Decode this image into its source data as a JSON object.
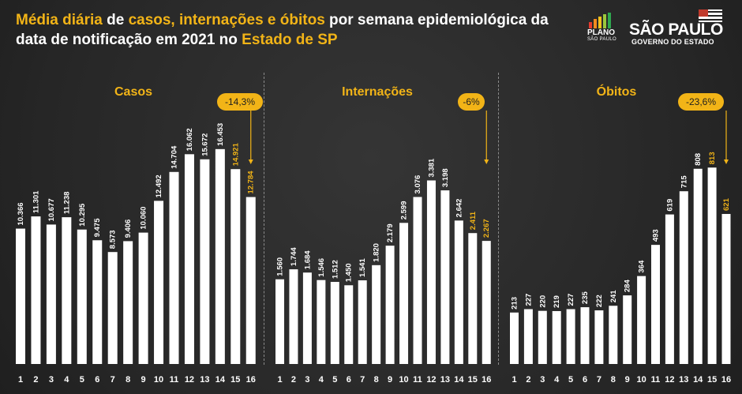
{
  "header": {
    "title_parts": [
      {
        "text": "Média diária",
        "highlight": true
      },
      {
        "text": " de ",
        "highlight": false
      },
      {
        "text": "casos, internações e óbitos",
        "highlight": true
      },
      {
        "text": " por semana epidemiológica da data de notificação em 2021 no ",
        "highlight": false
      },
      {
        "text": "Estado de SP",
        "highlight": true
      }
    ],
    "logo_plano_line1": "PLANO",
    "logo_plano_line2": "SÃO PAULO",
    "logo_sp_line1": "SÃO PAULO",
    "logo_sp_line2": "GOVERNO DO ESTADO"
  },
  "colors": {
    "accent": "#f2b417",
    "bar": "#ffffff",
    "text": "#ffffff",
    "background": "#2b2b2b"
  },
  "chart_data": [
    {
      "type": "bar",
      "title": "Casos",
      "categories": [
        "1",
        "2",
        "3",
        "4",
        "5",
        "6",
        "7",
        "8",
        "9",
        "10",
        "11",
        "12",
        "13",
        "14",
        "15",
        "16"
      ],
      "values": [
        10366,
        11301,
        10677,
        11238,
        10295,
        9475,
        8573,
        9406,
        10060,
        12492,
        14704,
        16062,
        15672,
        16453,
        14921,
        12784
      ],
      "value_labels": [
        "10.366",
        "11.301",
        "10.677",
        "11.238",
        "10.295",
        "9.475",
        "8.573",
        "9.406",
        "10.060",
        "12.492",
        "14.704",
        "16.062",
        "15.672",
        "16.453",
        "14.921",
        "12.784"
      ],
      "highlighted_labels": [
        15,
        16
      ],
      "annotation": "-14,3%",
      "ylim": [
        0,
        18500
      ]
    },
    {
      "type": "bar",
      "title": "Internações",
      "categories": [
        "1",
        "2",
        "3",
        "4",
        "5",
        "6",
        "7",
        "8",
        "9",
        "10",
        "11",
        "12",
        "13",
        "14",
        "15",
        "16"
      ],
      "values": [
        1560,
        1744,
        1684,
        1546,
        1512,
        1450,
        1541,
        1820,
        2179,
        2599,
        3076,
        3381,
        3198,
        2642,
        2411,
        2267
      ],
      "value_labels": [
        "1.560",
        "1.744",
        "1.684",
        "1.546",
        "1.512",
        "1.450",
        "1.541",
        "1.820",
        "2.179",
        "2.599",
        "3.076",
        "3.381",
        "3.198",
        "2.642",
        "2.411",
        "2.267"
      ],
      "highlighted_labels": [
        15,
        16
      ],
      "annotation": "-6%",
      "ylim": [
        0,
        4450
      ]
    },
    {
      "type": "bar",
      "title": "Óbitos",
      "categories": [
        "1",
        "2",
        "3",
        "4",
        "5",
        "6",
        "7",
        "8",
        "9",
        "10",
        "11",
        "12",
        "13",
        "14",
        "15",
        "16"
      ],
      "values": [
        213,
        227,
        220,
        219,
        227,
        235,
        222,
        241,
        284,
        364,
        493,
        619,
        715,
        808,
        813,
        621
      ],
      "value_labels": [
        "213",
        "227",
        "220",
        "219",
        "227",
        "235",
        "222",
        "241",
        "284",
        "364",
        "493",
        "619",
        "715",
        "808",
        "813",
        "621"
      ],
      "highlighted_labels": [
        15,
        16
      ],
      "annotation": "-23,6%",
      "ylim": [
        0,
        1000
      ]
    }
  ]
}
